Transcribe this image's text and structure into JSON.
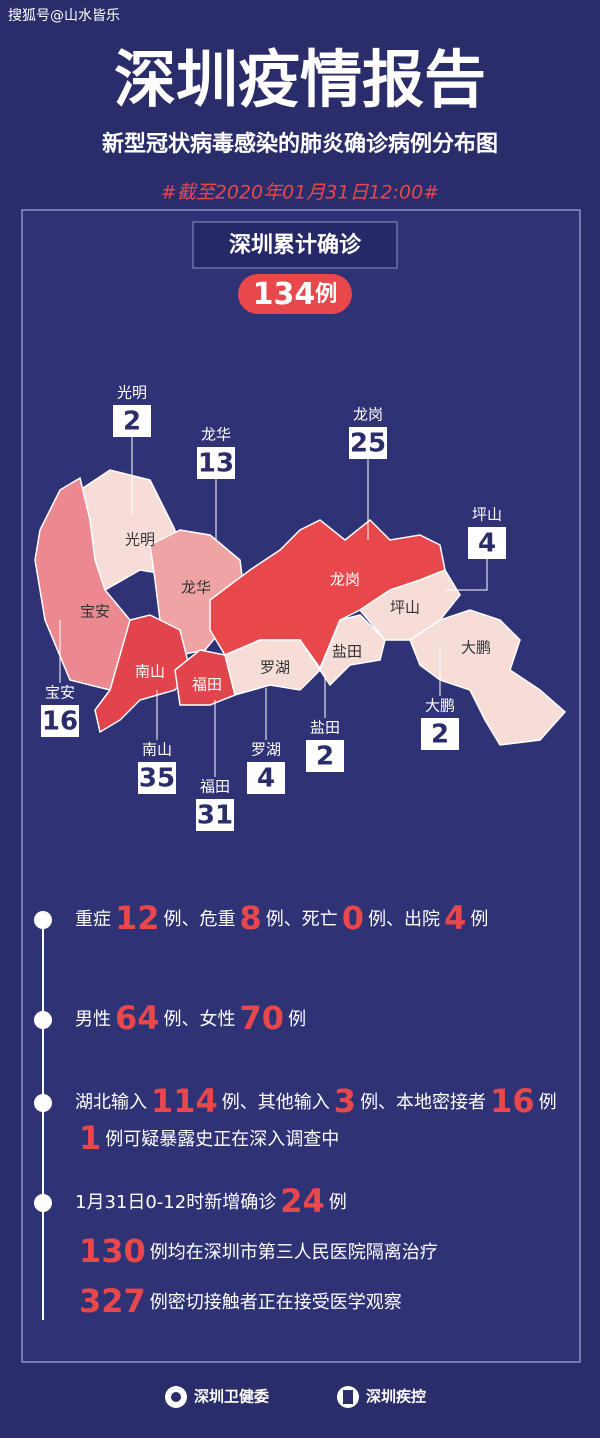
{
  "watermark": "搜狐号@山水皆乐",
  "header": {
    "title": "深圳疫情报告",
    "subtitle": "新型冠状病毒感染的肺炎确诊病例分布图",
    "date": "#截至2020年01月31日12:00#"
  },
  "total": {
    "label": "深圳累计确诊",
    "value": 134,
    "unit": "例"
  },
  "districts": [
    {
      "name": "光明",
      "value": 2,
      "color": "#f6ddd8"
    },
    {
      "name": "龙华",
      "value": 13,
      "color": "#f0a3a5"
    },
    {
      "name": "龙岗",
      "value": 25,
      "color": "#e8474c"
    },
    {
      "name": "坪山",
      "value": 4,
      "color": "#f6ddd8"
    },
    {
      "name": "宝安",
      "value": 16,
      "color": "#ec8890"
    },
    {
      "name": "南山",
      "value": 35,
      "color": "#e1444a"
    },
    {
      "name": "福田",
      "value": 31,
      "color": "#e1444a"
    },
    {
      "name": "罗湖",
      "value": 4,
      "color": "#f6ddd8"
    },
    {
      "name": "盐田",
      "value": 2,
      "color": "#f6ddd8"
    },
    {
      "name": "大鹏",
      "value": 2,
      "color": "#f6ddd8"
    }
  ],
  "stats": [
    {
      "lines": [
        [
          "重症",
          12,
          "例、危重",
          8,
          "例、死亡",
          0,
          "例、出院",
          4,
          "例"
        ]
      ]
    },
    {
      "lines": [
        [
          "男性",
          64,
          "例、女性",
          70,
          "例"
        ]
      ]
    },
    {
      "lines": [
        [
          "湖北输入",
          114,
          "例、其他输入",
          3,
          "例、本地密接者",
          16,
          "例"
        ],
        [
          1,
          "例可疑暴露史正在深入调查中"
        ]
      ]
    },
    {
      "lines": [
        [
          "1月31日0-12时新增确诊",
          24,
          "例"
        ],
        [
          130,
          "例均在深圳市第三人民医院隔离治疗"
        ],
        [
          327,
          "例密切接触者正在接受医学观察"
        ]
      ]
    }
  ],
  "footer": [
    "深圳卫健委",
    "深圳疾控"
  ]
}
